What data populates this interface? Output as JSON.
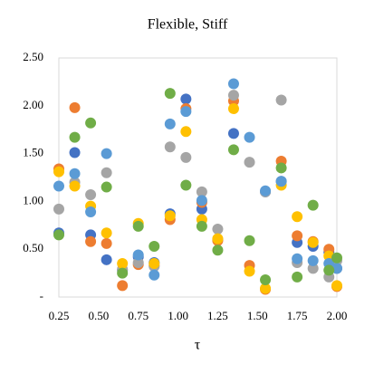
{
  "chart_data": {
    "type": "scatter",
    "title": "Flexible,  Stiff",
    "x_label": "τ",
    "x": [
      0.25,
      0.35,
      0.45,
      0.55,
      0.65,
      0.75,
      0.85,
      0.95,
      1.05,
      1.15,
      1.25,
      1.35,
      1.45,
      1.55,
      1.65,
      1.75,
      1.85,
      1.95,
      2.0
    ],
    "series": [
      {
        "color": "#4472c4",
        "values": [
          0.67,
          1.51,
          0.65,
          0.39,
          0.28,
          0.42,
          0.36,
          0.87,
          2.07,
          0.92,
          0.6,
          1.71,
          null,
          1.1,
          1.21,
          0.57,
          0.53,
          0.47,
          0.3
        ]
      },
      {
        "color": "#ed7d31",
        "values": [
          1.34,
          1.98,
          0.58,
          0.56,
          0.12,
          0.34,
          0.33,
          0.81,
          1.97,
          0.99,
          0.59,
          2.05,
          0.33,
          0.08,
          1.42,
          0.64,
          0.58,
          0.5,
          0.11
        ]
      },
      {
        "color": "#a5a5a5",
        "values": [
          0.92,
          1.2,
          1.07,
          1.3,
          0.29,
          0.36,
          0.32,
          1.57,
          1.46,
          1.1,
          0.71,
          2.11,
          1.41,
          1.1,
          2.06,
          0.36,
          0.3,
          0.21,
          0.38
        ]
      },
      {
        "color": "#ffc000",
        "values": [
          1.31,
          1.16,
          0.95,
          0.67,
          0.35,
          0.77,
          0.35,
          0.85,
          1.73,
          0.81,
          0.61,
          1.97,
          0.27,
          0.09,
          1.17,
          0.84,
          0.57,
          0.43,
          0.12
        ]
      },
      {
        "color": "#5b9bd5",
        "values": [
          1.16,
          1.29,
          0.89,
          1.5,
          null,
          0.44,
          0.23,
          1.81,
          1.94,
          1.01,
          null,
          2.23,
          1.67,
          1.11,
          1.21,
          0.4,
          0.38,
          0.35,
          0.3
        ]
      },
      {
        "color": "#70ad47",
        "values": [
          0.65,
          1.67,
          1.82,
          1.15,
          0.25,
          0.74,
          0.53,
          2.13,
          1.17,
          0.74,
          0.49,
          1.54,
          0.59,
          0.18,
          1.35,
          0.21,
          0.96,
          0.28,
          0.41
        ]
      }
    ],
    "xlim": [
      0.25,
      2.0
    ],
    "xticks": [
      {
        "value": 0.25,
        "label": "0.25"
      },
      {
        "value": 0.5,
        "label": "0.50"
      },
      {
        "value": 0.75,
        "label": "0.75"
      },
      {
        "value": 1.0,
        "label": "1.00"
      },
      {
        "value": 1.25,
        "label": "1.25"
      },
      {
        "value": 1.5,
        "label": "1.50"
      },
      {
        "value": 1.75,
        "label": "1.75"
      },
      {
        "value": 2.0,
        "label": "2.00"
      }
    ],
    "ylim": [
      0,
      2.5
    ],
    "yticks": [
      {
        "value": 0,
        "label": "-"
      },
      {
        "value": 0.5,
        "label": "0.50"
      },
      {
        "value": 1.0,
        "label": "1.00"
      },
      {
        "value": 1.5,
        "label": "1.50"
      },
      {
        "value": 2.0,
        "label": "2.00"
      },
      {
        "value": 2.5,
        "label": "2.50"
      }
    ],
    "grid": false
  }
}
